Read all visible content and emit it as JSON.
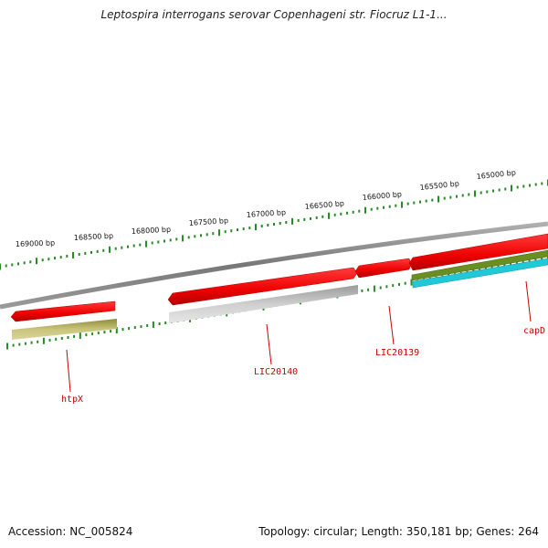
{
  "title": "Leptospira interrogans serovar Copenhageni str. Fiocruz L1-1...",
  "footer": {
    "accession": "Accession: NC_005824",
    "summary": "Topology: circular; Length: 350,181 bp; Genes: 264"
  },
  "scale_labels": [
    "169000 bp",
    "168500 bp",
    "168000 bp",
    "167500 bp",
    "167000 bp",
    "166500 bp",
    "166000 bp",
    "165500 bp",
    "165000 bp"
  ],
  "genes": [
    {
      "name": "htpX"
    },
    {
      "name": "LIC20140"
    },
    {
      "name": "LIC20139"
    },
    {
      "name": "capD"
    }
  ],
  "colors": {
    "backbone": "#8a8a8a",
    "cds": "#ee1111",
    "tick": "#2a8a2a",
    "label": "#cc0000",
    "olive": "#bdb76b",
    "gray_feature": "#b8b8b8",
    "green_feature": "#6b8e23",
    "cyan_feature": "#22c8d8"
  }
}
